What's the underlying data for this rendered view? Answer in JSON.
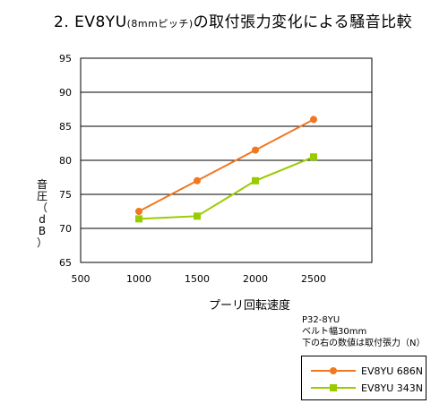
{
  "title": {
    "main": "2. EV8YU",
    "small": "(8mmピッチ)",
    "rest": "の取付張力変化による騒音比較"
  },
  "chart_data": {
    "type": "line",
    "title": "2. EV8YU(8mmピッチ)の取付張力変化による騒音比較",
    "xlabel": "プーリ回転速度",
    "ylabel": "音圧（dB）",
    "xlim": [
      500,
      3000
    ],
    "ylim": [
      65,
      95
    ],
    "x_ticks": [
      "500",
      "1000",
      "1500",
      "2000",
      "2500"
    ],
    "y_ticks": [
      "65",
      "70",
      "75",
      "80",
      "85",
      "90",
      "95"
    ],
    "grid": "horizontal",
    "legend": "bottom-right",
    "series": [
      {
        "name": "EV8YU 686N",
        "color": "#F07820",
        "marker": "circle",
        "x": [
          1000,
          1500,
          2000,
          2500
        ],
        "values": [
          72.5,
          77,
          81.5,
          86
        ]
      },
      {
        "name": "EV8YU 343N",
        "color": "#99CC00",
        "marker": "square",
        "x": [
          1000,
          1500,
          2000,
          2500
        ],
        "values": [
          71.4,
          71.8,
          77,
          80.5
        ]
      }
    ]
  },
  "notes": [
    "P32-8YU",
    "ベルト幅30mm",
    "下の右の数値は取付張力（N）"
  ]
}
